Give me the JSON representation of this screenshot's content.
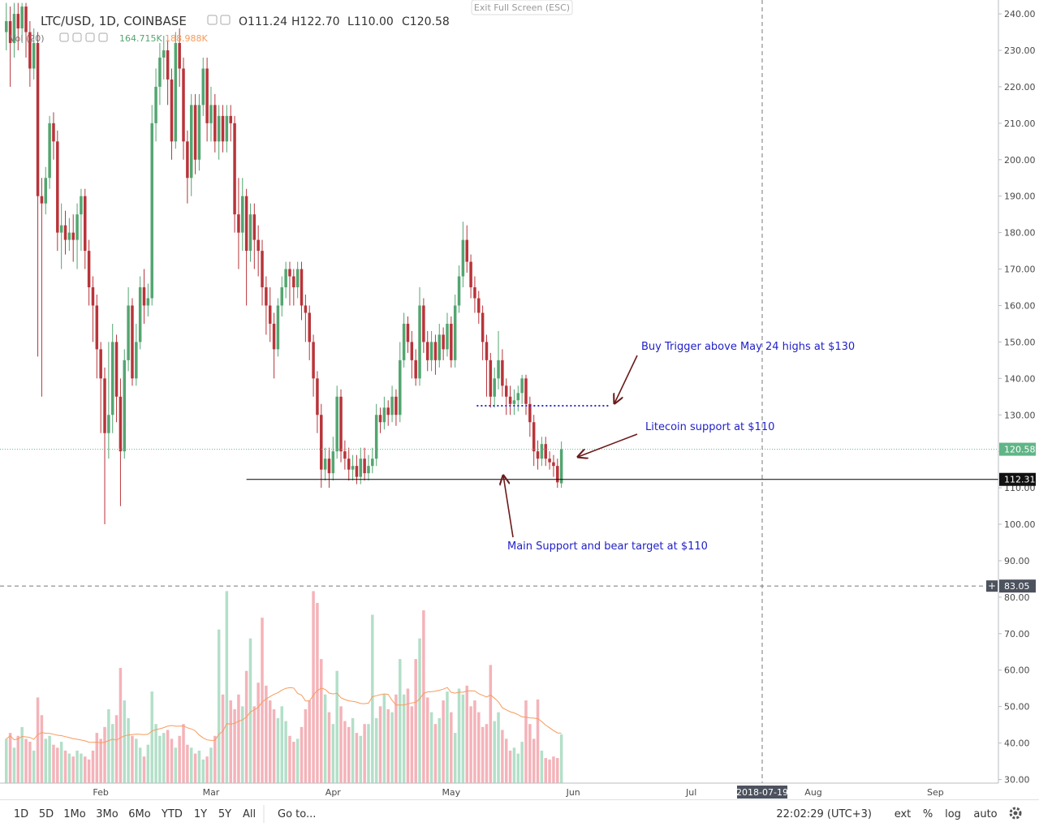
{
  "header": {
    "exit": "Exit Full Screen (ESC)"
  },
  "chart_data": {
    "type": "candlestick",
    "title": "LTC/USD, 1D, COINBASE",
    "ohlc_legend": [
      {
        "key": "O",
        "value": 111.24,
        "label": "111.24"
      },
      {
        "key": "H",
        "value": 122.7,
        "label": "122.70"
      },
      {
        "key": "L",
        "value": 110,
        "label": "110.00"
      },
      {
        "key": "C",
        "value": 120.58,
        "label": "120.58"
      }
    ],
    "volume_legend": {
      "name": "Vol (20)",
      "value": 164.715,
      "label": "164.715K",
      "ma": 188.988,
      "ma_label": "188.988K"
    },
    "open": [
      235,
      238,
      232,
      240,
      236,
      242,
      235,
      225,
      232,
      190,
      188,
      195,
      210,
      205,
      180,
      182,
      178,
      180,
      178,
      185,
      190,
      175,
      165,
      160,
      148,
      140,
      125,
      130,
      150,
      135,
      120,
      145,
      160,
      140,
      150,
      165,
      160,
      162,
      210,
      220,
      228,
      230,
      222,
      205,
      232,
      225,
      205,
      195,
      215,
      200,
      215,
      225,
      210,
      215,
      205,
      212,
      205,
      212,
      210,
      185,
      180,
      190,
      175,
      185,
      178,
      175,
      165,
      160,
      155,
      148,
      160,
      165,
      170,
      168,
      165,
      170,
      160,
      158,
      150,
      140,
      130,
      115,
      118,
      114,
      120,
      135,
      120,
      118,
      115,
      116,
      113,
      118,
      114,
      116,
      118,
      130,
      128,
      132,
      130,
      135,
      130,
      145,
      155,
      150,
      145,
      140,
      160,
      150,
      145,
      150,
      145,
      152,
      148,
      155,
      145,
      160,
      168,
      178,
      172,
      165,
      162,
      158,
      150,
      145,
      135,
      140,
      145,
      138,
      135,
      133,
      134,
      136,
      140,
      133,
      128,
      120,
      118,
      122,
      118,
      117,
      116,
      111.24
    ],
    "high": [
      243,
      242,
      243,
      243,
      243,
      243,
      238,
      236,
      235,
      195,
      198,
      212,
      213,
      208,
      188,
      186,
      184,
      185,
      188,
      192,
      192,
      178,
      168,
      163,
      150,
      143,
      150,
      155,
      152,
      140,
      148,
      165,
      162,
      155,
      168,
      170,
      166,
      215,
      225,
      232,
      234,
      233,
      225,
      235,
      236,
      228,
      208,
      218,
      218,
      218,
      228,
      228,
      220,
      218,
      215,
      215,
      215,
      215,
      212,
      195,
      195,
      192,
      188,
      188,
      182,
      178,
      168,
      165,
      158,
      162,
      168,
      172,
      172,
      170,
      172,
      172,
      163,
      160,
      152,
      142,
      133,
      121,
      121,
      124,
      138,
      137,
      123,
      121,
      119,
      119,
      121,
      121,
      119,
      121,
      133,
      132,
      135,
      134,
      138,
      137,
      150,
      158,
      157,
      153,
      148,
      165,
      162,
      153,
      153,
      152,
      155,
      154,
      158,
      157,
      163,
      171,
      183,
      182,
      174,
      168,
      164,
      160,
      152,
      147,
      143,
      153,
      148,
      140,
      138,
      137,
      138,
      141,
      141,
      135,
      130,
      123,
      124,
      124,
      120,
      119,
      118,
      122.7
    ],
    "low": [
      230,
      220,
      228,
      230,
      232,
      228,
      220,
      222,
      146,
      135,
      185,
      192,
      200,
      175,
      170,
      174,
      175,
      172,
      170,
      175,
      170,
      160,
      150,
      140,
      125,
      100,
      118,
      125,
      128,
      105,
      118,
      142,
      138,
      138,
      148,
      155,
      157,
      160,
      205,
      215,
      222,
      215,
      200,
      203,
      220,
      200,
      188,
      190,
      196,
      197,
      212,
      205,
      205,
      202,
      200,
      202,
      202,
      205,
      180,
      170,
      175,
      160,
      172,
      170,
      168,
      160,
      152,
      150,
      140,
      146,
      157,
      162,
      160,
      160,
      162,
      156,
      150,
      145,
      135,
      125,
      110,
      112,
      110,
      112,
      118,
      117,
      115,
      112,
      112,
      111,
      111,
      112,
      112,
      114,
      116,
      125,
      126,
      127,
      128,
      127,
      128,
      143,
      147,
      140,
      138,
      138,
      147,
      142,
      142,
      141,
      143,
      145,
      146,
      143,
      143,
      158,
      165,
      169,
      162,
      158,
      155,
      145,
      135,
      132,
      132,
      137,
      135,
      130,
      130,
      130,
      131,
      133,
      130,
      124,
      116,
      115,
      116,
      116,
      115,
      113,
      110,
      110
    ],
    "close": [
      238,
      232,
      240,
      236,
      242,
      235,
      225,
      232,
      190,
      188,
      195,
      210,
      205,
      180,
      182,
      178,
      180,
      178,
      185,
      190,
      175,
      165,
      160,
      148,
      140,
      125,
      130,
      150,
      135,
      120,
      145,
      160,
      140,
      150,
      165,
      160,
      162,
      210,
      220,
      228,
      230,
      222,
      205,
      232,
      225,
      205,
      195,
      215,
      200,
      215,
      225,
      210,
      215,
      205,
      212,
      205,
      212,
      210,
      185,
      180,
      190,
      175,
      185,
      178,
      175,
      165,
      160,
      155,
      148,
      160,
      165,
      170,
      168,
      165,
      170,
      160,
      158,
      150,
      140,
      130,
      115,
      118,
      114,
      120,
      135,
      120,
      118,
      115,
      116,
      113,
      118,
      114,
      116,
      118,
      130,
      128,
      132,
      130,
      135,
      130,
      145,
      155,
      150,
      145,
      140,
      160,
      150,
      145,
      150,
      145,
      152,
      148,
      155,
      145,
      160,
      168,
      178,
      172,
      165,
      162,
      158,
      150,
      145,
      135,
      140,
      145,
      138,
      135,
      133,
      134,
      136,
      140,
      133,
      128,
      120,
      118,
      122,
      118,
      117,
      116,
      111.5,
      120.58
    ],
    "volume": [
      150,
      170,
      120,
      160,
      190,
      150,
      140,
      110,
      290,
      230,
      150,
      160,
      130,
      120,
      140,
      110,
      100,
      90,
      110,
      100,
      90,
      80,
      110,
      170,
      150,
      190,
      250,
      200,
      230,
      390,
      280,
      220,
      160,
      150,
      120,
      90,
      130,
      310,
      200,
      160,
      170,
      180,
      150,
      120,
      160,
      200,
      130,
      120,
      100,
      110,
      80,
      90,
      120,
      160,
      520,
      300,
      650,
      280,
      250,
      300,
      260,
      380,
      490,
      260,
      340,
      560,
      330,
      280,
      250,
      220,
      260,
      210,
      160,
      140,
      150,
      190,
      250,
      280,
      650,
      610,
      420,
      300,
      240,
      200,
      380,
      260,
      210,
      190,
      220,
      170,
      160,
      200,
      200,
      570,
      220,
      260,
      300,
      250,
      240,
      300,
      420,
      300,
      320,
      260,
      420,
      490,
      585,
      290,
      240,
      200,
      220,
      280,
      310,
      240,
      170,
      320,
      300,
      330,
      260,
      280,
      240,
      190,
      200,
      400,
      210,
      240,
      180,
      150,
      110,
      120,
      100,
      140,
      280,
      200,
      150,
      283,
      110,
      85,
      80,
      90,
      85,
      164.715
    ],
    "up_color": "#53a570",
    "down_color": "#b8343a",
    "volume_up_color": "#b3dfc8",
    "volume_down_color": "#f4b3b9",
    "ma_color": "#f79b5c",
    "xlim": [
      -1.6,
      252
    ],
    "xticks": [
      {
        "value": 24,
        "label": "Feb"
      },
      {
        "value": 52,
        "label": "Mar"
      },
      {
        "value": 83,
        "label": "Apr"
      },
      {
        "value": 113,
        "label": "May"
      },
      {
        "value": 144,
        "label": "Jun"
      },
      {
        "value": 174,
        "label": "Jul"
      },
      {
        "value": 205,
        "label": "Aug"
      },
      {
        "value": 236,
        "label": "Sep"
      }
    ],
    "ylim": [
      29,
      243.8
    ],
    "yticks": [
      {
        "value": 30,
        "label": "30.00"
      },
      {
        "value": 40,
        "label": "40.00"
      },
      {
        "value": 50,
        "label": "50.00"
      },
      {
        "value": 60,
        "label": "60.00"
      },
      {
        "value": 70,
        "label": "70.00"
      },
      {
        "value": 80,
        "label": "80.00"
      },
      {
        "value": 90,
        "label": "90.00"
      },
      {
        "value": 100,
        "label": "100.00"
      },
      {
        "value": 110,
        "label": "110.00"
      },
      {
        "value": 120,
        "label": "120.00"
      },
      {
        "value": 130,
        "label": "130.00"
      },
      {
        "value": 140,
        "label": "140.00"
      },
      {
        "value": 150,
        "label": "150.00"
      },
      {
        "value": 160,
        "label": "160.00"
      },
      {
        "value": 170,
        "label": "170.00"
      },
      {
        "value": 180,
        "label": "180.00"
      },
      {
        "value": 190,
        "label": "190.00"
      },
      {
        "value": 200,
        "label": "200.00"
      },
      {
        "value": 210,
        "label": "210.00"
      },
      {
        "value": 220,
        "label": "220.00"
      },
      {
        "value": 230,
        "label": "230.00"
      },
      {
        "value": 240,
        "label": "240.00"
      }
    ],
    "grid": true,
    "last_price": {
      "value": 120.58,
      "label": "120.58",
      "color": "#5fb586"
    },
    "support_line": {
      "value": 112.31,
      "label": "112.31",
      "start": 61
    },
    "trigger_line": {
      "value": 132.5,
      "start": 119.5,
      "end": 153,
      "color": "#2b2bd6"
    },
    "crosshair": {
      "x": 192,
      "x_label": "2018-07-19",
      "value": 83.05,
      "label": "83.05"
    },
    "annotations": [
      "Buy Trigger above May 24 highs at $130",
      "Litecoin support at $110",
      "Main Support and bear target at $110"
    ]
  },
  "toolbar": {
    "ranges": [
      "1D",
      "5D",
      "1Mo",
      "3Mo",
      "6Mo",
      "YTD",
      "1Y",
      "5Y",
      "All"
    ],
    "goto": "Go to...",
    "clock": "22:02:29 (UTC+3)",
    "options": [
      "ext",
      "%",
      "log",
      "auto"
    ]
  }
}
